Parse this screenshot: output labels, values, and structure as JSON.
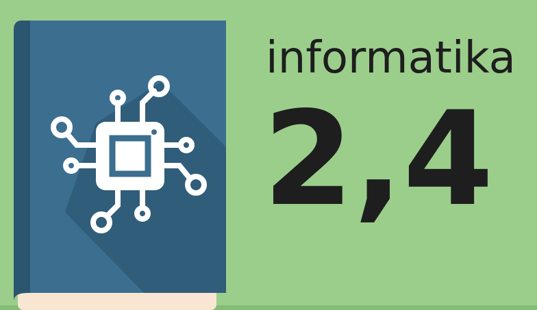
{
  "subject": "informatika",
  "value": "2,4"
}
